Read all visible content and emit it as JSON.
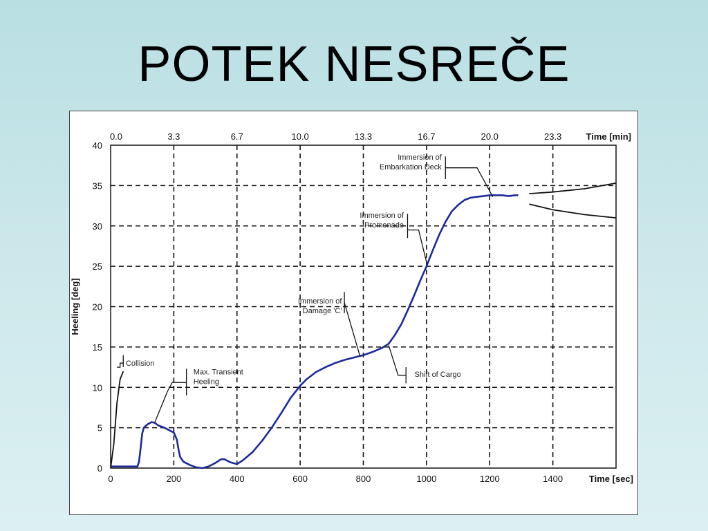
{
  "slide": {
    "title": "POTEK NESREČE"
  },
  "chart_data": {
    "type": "line",
    "title": "",
    "xlabel": "Time [sec]",
    "x2label": "Time [min]",
    "ylabel": "Heeling [deg]",
    "xlim": [
      0,
      1600
    ],
    "ylim": [
      0,
      40
    ],
    "x_ticks": [
      0,
      200,
      400,
      600,
      800,
      1000,
      1200,
      1400
    ],
    "x_tick_labels": [
      "0",
      "200",
      "400",
      "600",
      "800",
      "1000",
      "1200",
      "1400"
    ],
    "x2_ticks": [
      0,
      200,
      400,
      600,
      800,
      1000,
      1200,
      1400
    ],
    "x2_tick_labels": [
      "0.0",
      "3.3",
      "6.7",
      "10.0",
      "13.3",
      "16.7",
      "20.0",
      "23.3"
    ],
    "y_ticks": [
      0,
      5,
      10,
      15,
      20,
      25,
      30,
      35,
      40
    ],
    "y_tick_labels": [
      "0",
      "5",
      "10",
      "15",
      "20",
      "25",
      "30",
      "35",
      "40"
    ],
    "grid": true,
    "series": [
      {
        "color": "#1c2a9a",
        "x": [
          0,
          85,
          90,
          95,
          100,
          105,
          110,
          120,
          130,
          140,
          150,
          170,
          190,
          200,
          210,
          215,
          220,
          230,
          250,
          270,
          290,
          310,
          330,
          350,
          360,
          370,
          380,
          390,
          400,
          420,
          450,
          480,
          510,
          540,
          570,
          600,
          620,
          650,
          680,
          710,
          740,
          770,
          800,
          830,
          860,
          880,
          900,
          920,
          940,
          960,
          980,
          1000,
          1010,
          1020,
          1040,
          1060,
          1080,
          1100,
          1120,
          1140,
          1160,
          1180,
          1200,
          1220,
          1240,
          1260,
          1280,
          1290
        ],
        "y": [
          0.2,
          0.2,
          0.8,
          2.5,
          4.3,
          5.0,
          5.2,
          5.5,
          5.7,
          5.6,
          5.3,
          5.0,
          4.6,
          4.4,
          3.5,
          2.3,
          1.4,
          0.8,
          0.4,
          0.1,
          0.0,
          0.2,
          0.6,
          1.1,
          1.1,
          0.9,
          0.7,
          0.6,
          0.5,
          1.0,
          2.0,
          3.4,
          5.0,
          6.8,
          8.7,
          10.2,
          11.0,
          11.9,
          12.5,
          13.0,
          13.4,
          13.7,
          14.0,
          14.4,
          14.9,
          15.4,
          16.5,
          17.8,
          19.5,
          21.3,
          23.2,
          25.0,
          26.0,
          27.0,
          28.9,
          30.5,
          31.8,
          32.6,
          33.2,
          33.5,
          33.6,
          33.7,
          33.8,
          33.8,
          33.8,
          33.7,
          33.8,
          33.8
        ]
      },
      {
        "color": "#111111",
        "x": [
          0,
          10,
          20,
          30,
          40
        ],
        "y": [
          0,
          3,
          8,
          11,
          12
        ]
      },
      {
        "color": "#111111",
        "x": [
          1325,
          1400,
          1500,
          1600
        ],
        "y": [
          34.0,
          34.2,
          34.6,
          35.3
        ]
      },
      {
        "color": "#111111",
        "x": [
          1325,
          1400,
          1500,
          1600
        ],
        "y": [
          32.7,
          32.0,
          31.4,
          31.0
        ]
      }
    ],
    "annotations": [
      {
        "lines": [
          "Collision"
        ]
      },
      {
        "lines": [
          "Max. Transient",
          "Heeling"
        ]
      },
      {
        "lines": [
          "Immersion of",
          "Damage 'C'"
        ]
      },
      {
        "lines": [
          "Shift of Cargo"
        ]
      },
      {
        "lines": [
          "Immersion of",
          "Promenade"
        ]
      },
      {
        "lines": [
          "Immersion of",
          "Embarkation Deck"
        ]
      }
    ]
  }
}
